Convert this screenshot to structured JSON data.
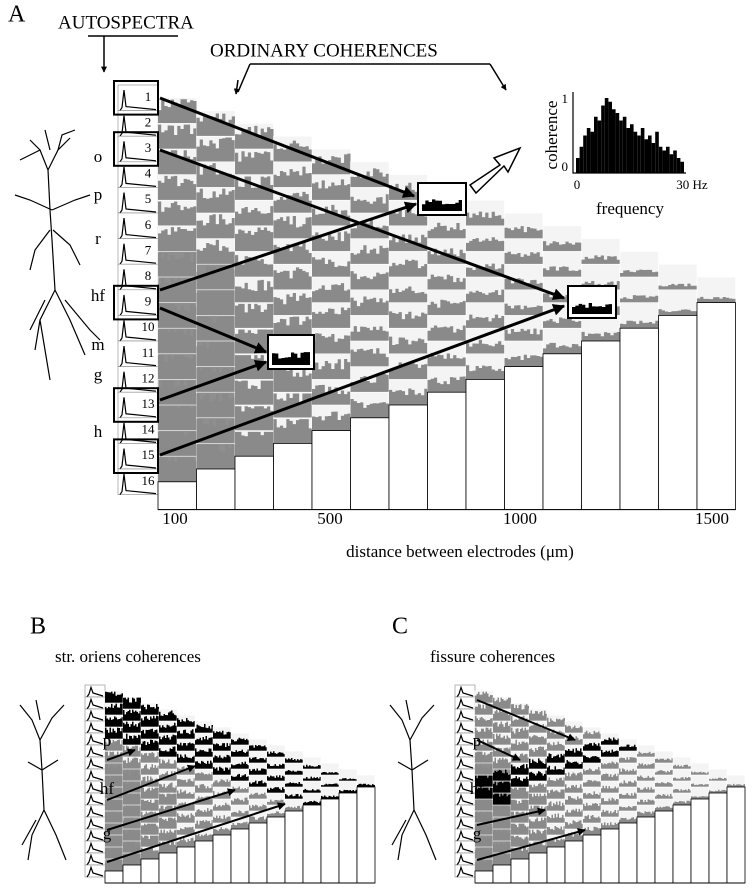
{
  "panel_a": {
    "label": "A",
    "autospectra": "AUTOSPECTRA",
    "coherences": "ORDINARY COHERENCES",
    "electrodes": [
      "1",
      "2",
      "3",
      "4",
      "5",
      "6",
      "7",
      "8",
      "9",
      "10",
      "11",
      "12",
      "13",
      "14",
      "15",
      "16"
    ],
    "layers": [
      "o",
      "p",
      "r",
      "hf",
      "m",
      "g",
      "h"
    ],
    "x_ticks": [
      "100",
      "500",
      "1000",
      "1500"
    ],
    "x_axis_title": "distance between electrodes (μm)",
    "inset": {
      "y_title": "coherence",
      "y_ticks": [
        "1",
        "0"
      ],
      "x_ticks": [
        "0",
        "30 Hz"
      ],
      "x_title": "frequency"
    }
  },
  "panel_b": {
    "label": "B",
    "title": "str. oriens coherences",
    "layers": [
      "p",
      "hf",
      "g"
    ]
  },
  "panel_c": {
    "label": "C",
    "title": "fissure coherences",
    "layers": [
      "p",
      "hf",
      "g"
    ]
  }
}
